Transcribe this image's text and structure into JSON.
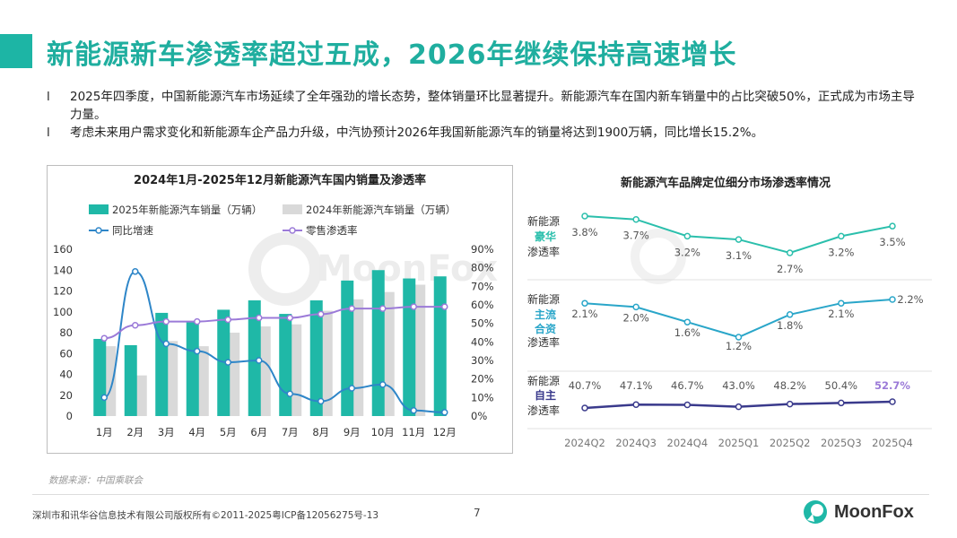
{
  "header": {
    "title": "新能源新车渗透率超过五成，2026年继续保持高速增长"
  },
  "bullets": {
    "marker": "l",
    "items": [
      "2025年四季度，中国新能源汽车市场延续了全年强劲的增长态势，整体销量环比显著提升。新能源汽车在国内新车销量中的占比突破50%，正式成为市场主导力量。",
      "考虑未来用户需求变化和新能源车企产品力升级，中汽协预计2026年我国新能源汽车的销量将达到1900万辆，同比增长15.2%。"
    ]
  },
  "watermark": "MoonFox",
  "colors": {
    "teal": "#1fb8a7",
    "gray_bar": "#d9d9d9",
    "blue_line": "#2e86c8",
    "purple_line": "#9b7ad8",
    "luxury": "#2bbfac",
    "mainstream": "#2aa6c9",
    "domestic": "#3a3a8c",
    "title_green": "#1fae9f"
  },
  "chart_data": [
    {
      "type": "bar",
      "title": "2024年1月-2025年12月新能源汽车国内销量及渗透率",
      "categories": [
        "1月",
        "2月",
        "3月",
        "4月",
        "5月",
        "6月",
        "7月",
        "8月",
        "9月",
        "10月",
        "11月",
        "12月"
      ],
      "series": [
        {
          "name": "2025年新能源汽车销量（万辆）",
          "type": "bar",
          "axis": "left",
          "values": [
            74,
            68,
            99,
            91,
            102,
            111,
            98,
            111,
            130,
            140,
            132,
            134
          ]
        },
        {
          "name": "2024年新能源汽车销量（万辆）",
          "type": "bar",
          "axis": "left",
          "values": [
            67,
            39,
            72,
            67,
            80,
            86,
            88,
            101,
            112,
            119,
            126,
            0
          ]
        },
        {
          "name": "同比增速",
          "type": "line",
          "axis": "right",
          "values": [
            10,
            78,
            39,
            35,
            29,
            30,
            12,
            8,
            15,
            17,
            3,
            2
          ]
        },
        {
          "name": "零售渗透率",
          "type": "line",
          "axis": "right",
          "values": [
            42,
            49,
            51,
            51,
            52,
            53,
            53,
            55,
            58,
            58,
            59,
            59
          ]
        }
      ],
      "ylim": [
        0,
        160
      ],
      "yticks": [
        "0",
        "20",
        "40",
        "60",
        "80",
        "100",
        "120",
        "140",
        "160"
      ],
      "y2lim": [
        0,
        90
      ],
      "y2ticks": [
        "0%",
        "10%",
        "20%",
        "30%",
        "40%",
        "50%",
        "60%",
        "70%",
        "80%",
        "90%"
      ],
      "legend": "top"
    },
    {
      "type": "line",
      "title": "新能源汽车品牌定位细分市场渗透率情况",
      "categories": [
        "2024Q2",
        "2024Q3",
        "2024Q4",
        "2025Q1",
        "2025Q2",
        "2025Q3",
        "2025Q4"
      ],
      "series": [
        {
          "name": "豪华",
          "label_prefix": "新能源",
          "label_suffix": "渗透率",
          "values": [
            3.8,
            3.7,
            3.2,
            3.1,
            2.7,
            3.2,
            3.5
          ],
          "labels": [
            "3.8%",
            "3.7%",
            "3.2%",
            "3.1%",
            "2.7%",
            "3.2%",
            "3.5%"
          ]
        },
        {
          "name": "主流合资",
          "label_prefix": "新能源",
          "label_suffix": "渗透率",
          "values": [
            2.1,
            2.0,
            1.6,
            1.2,
            1.8,
            2.1,
            2.2
          ],
          "labels": [
            "2.1%",
            "2.0%",
            "1.6%",
            "1.2%",
            "1.8%",
            "2.1%",
            "2.2%"
          ]
        },
        {
          "name": "自主",
          "label_prefix": "新能源",
          "label_suffix": "渗透率",
          "values": [
            40.7,
            47.1,
            46.7,
            43.0,
            48.2,
            50.4,
            52.7
          ],
          "labels": [
            "40.7%",
            "47.1%",
            "46.7%",
            "43.0%",
            "48.2%",
            "50.4%",
            "52.7%"
          ]
        }
      ]
    }
  ],
  "source": "数据来源：中国乘联会",
  "footer": {
    "copyright": "深圳市和讯华谷信息技术有限公司版权所有©2011-2025粤ICP备12056275号-13",
    "page_number": "7",
    "logo_text": "MoonFox"
  }
}
